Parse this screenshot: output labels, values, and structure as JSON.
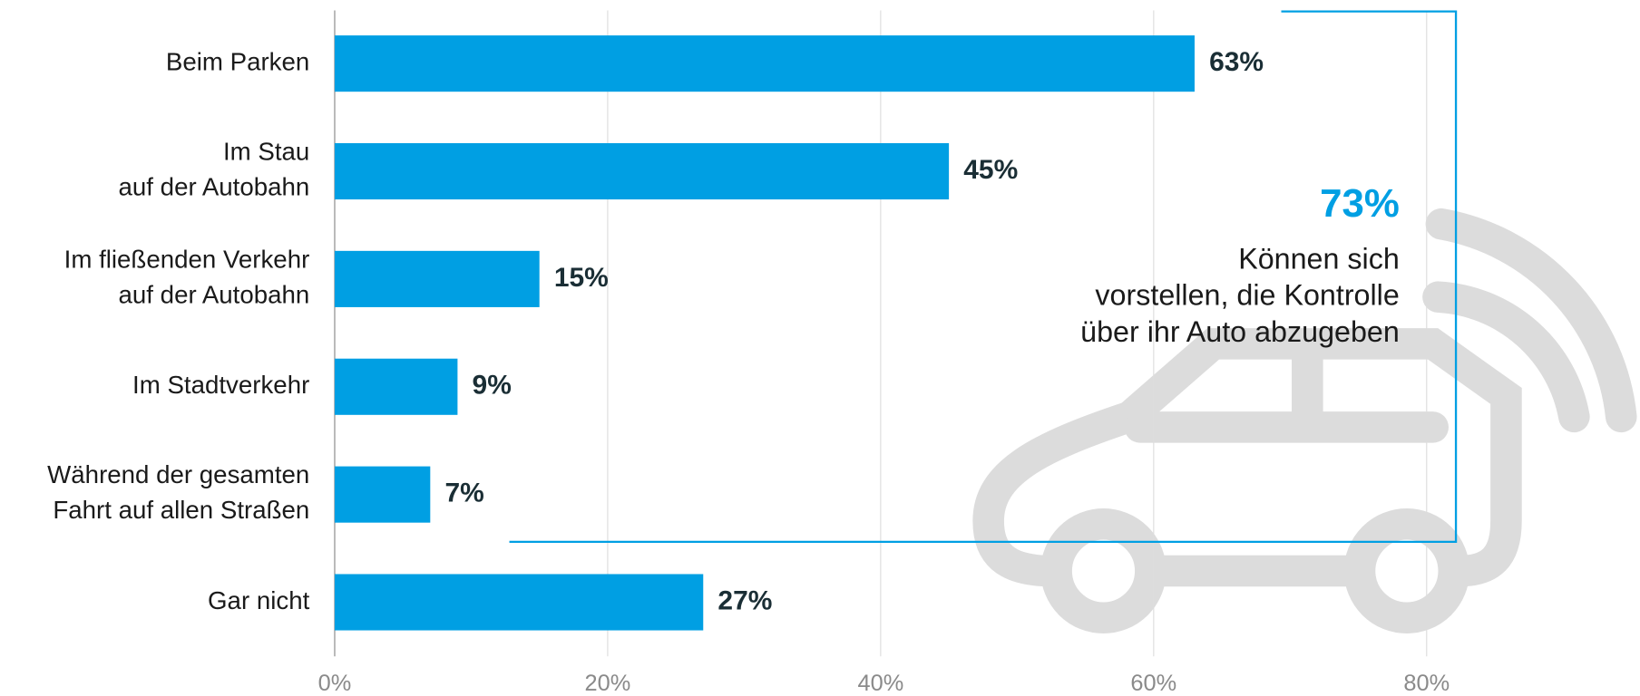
{
  "chart_data": {
    "type": "bar",
    "orientation": "horizontal",
    "categories": [
      "Beim Parken",
      "Im Stau\nauf der Autobahn",
      "Im fließenden Verkehr\nauf der Autobahn",
      "Im Stadtverkehr",
      "Während der gesamten\nFahrt auf allen Straßen",
      "Gar nicht"
    ],
    "values": [
      63,
      45,
      15,
      9,
      7,
      27
    ],
    "value_labels": [
      "63%",
      "45%",
      "15%",
      "9%",
      "7%",
      "27%"
    ],
    "color": "#009fe3",
    "xlim": [
      0,
      95
    ],
    "xticks": [
      {
        "value": 0,
        "label": "0%"
      },
      {
        "value": 20,
        "label": "20%"
      },
      {
        "value": 40,
        "label": "40%"
      },
      {
        "value": 60,
        "label": "60%"
      },
      {
        "value": 80,
        "label": "80%"
      }
    ],
    "grid": true,
    "annotation": {
      "value_label": "73%",
      "text": "Können sich\nvorstellen, die Kontrolle\nüber ihr Auto abzugeben"
    }
  }
}
